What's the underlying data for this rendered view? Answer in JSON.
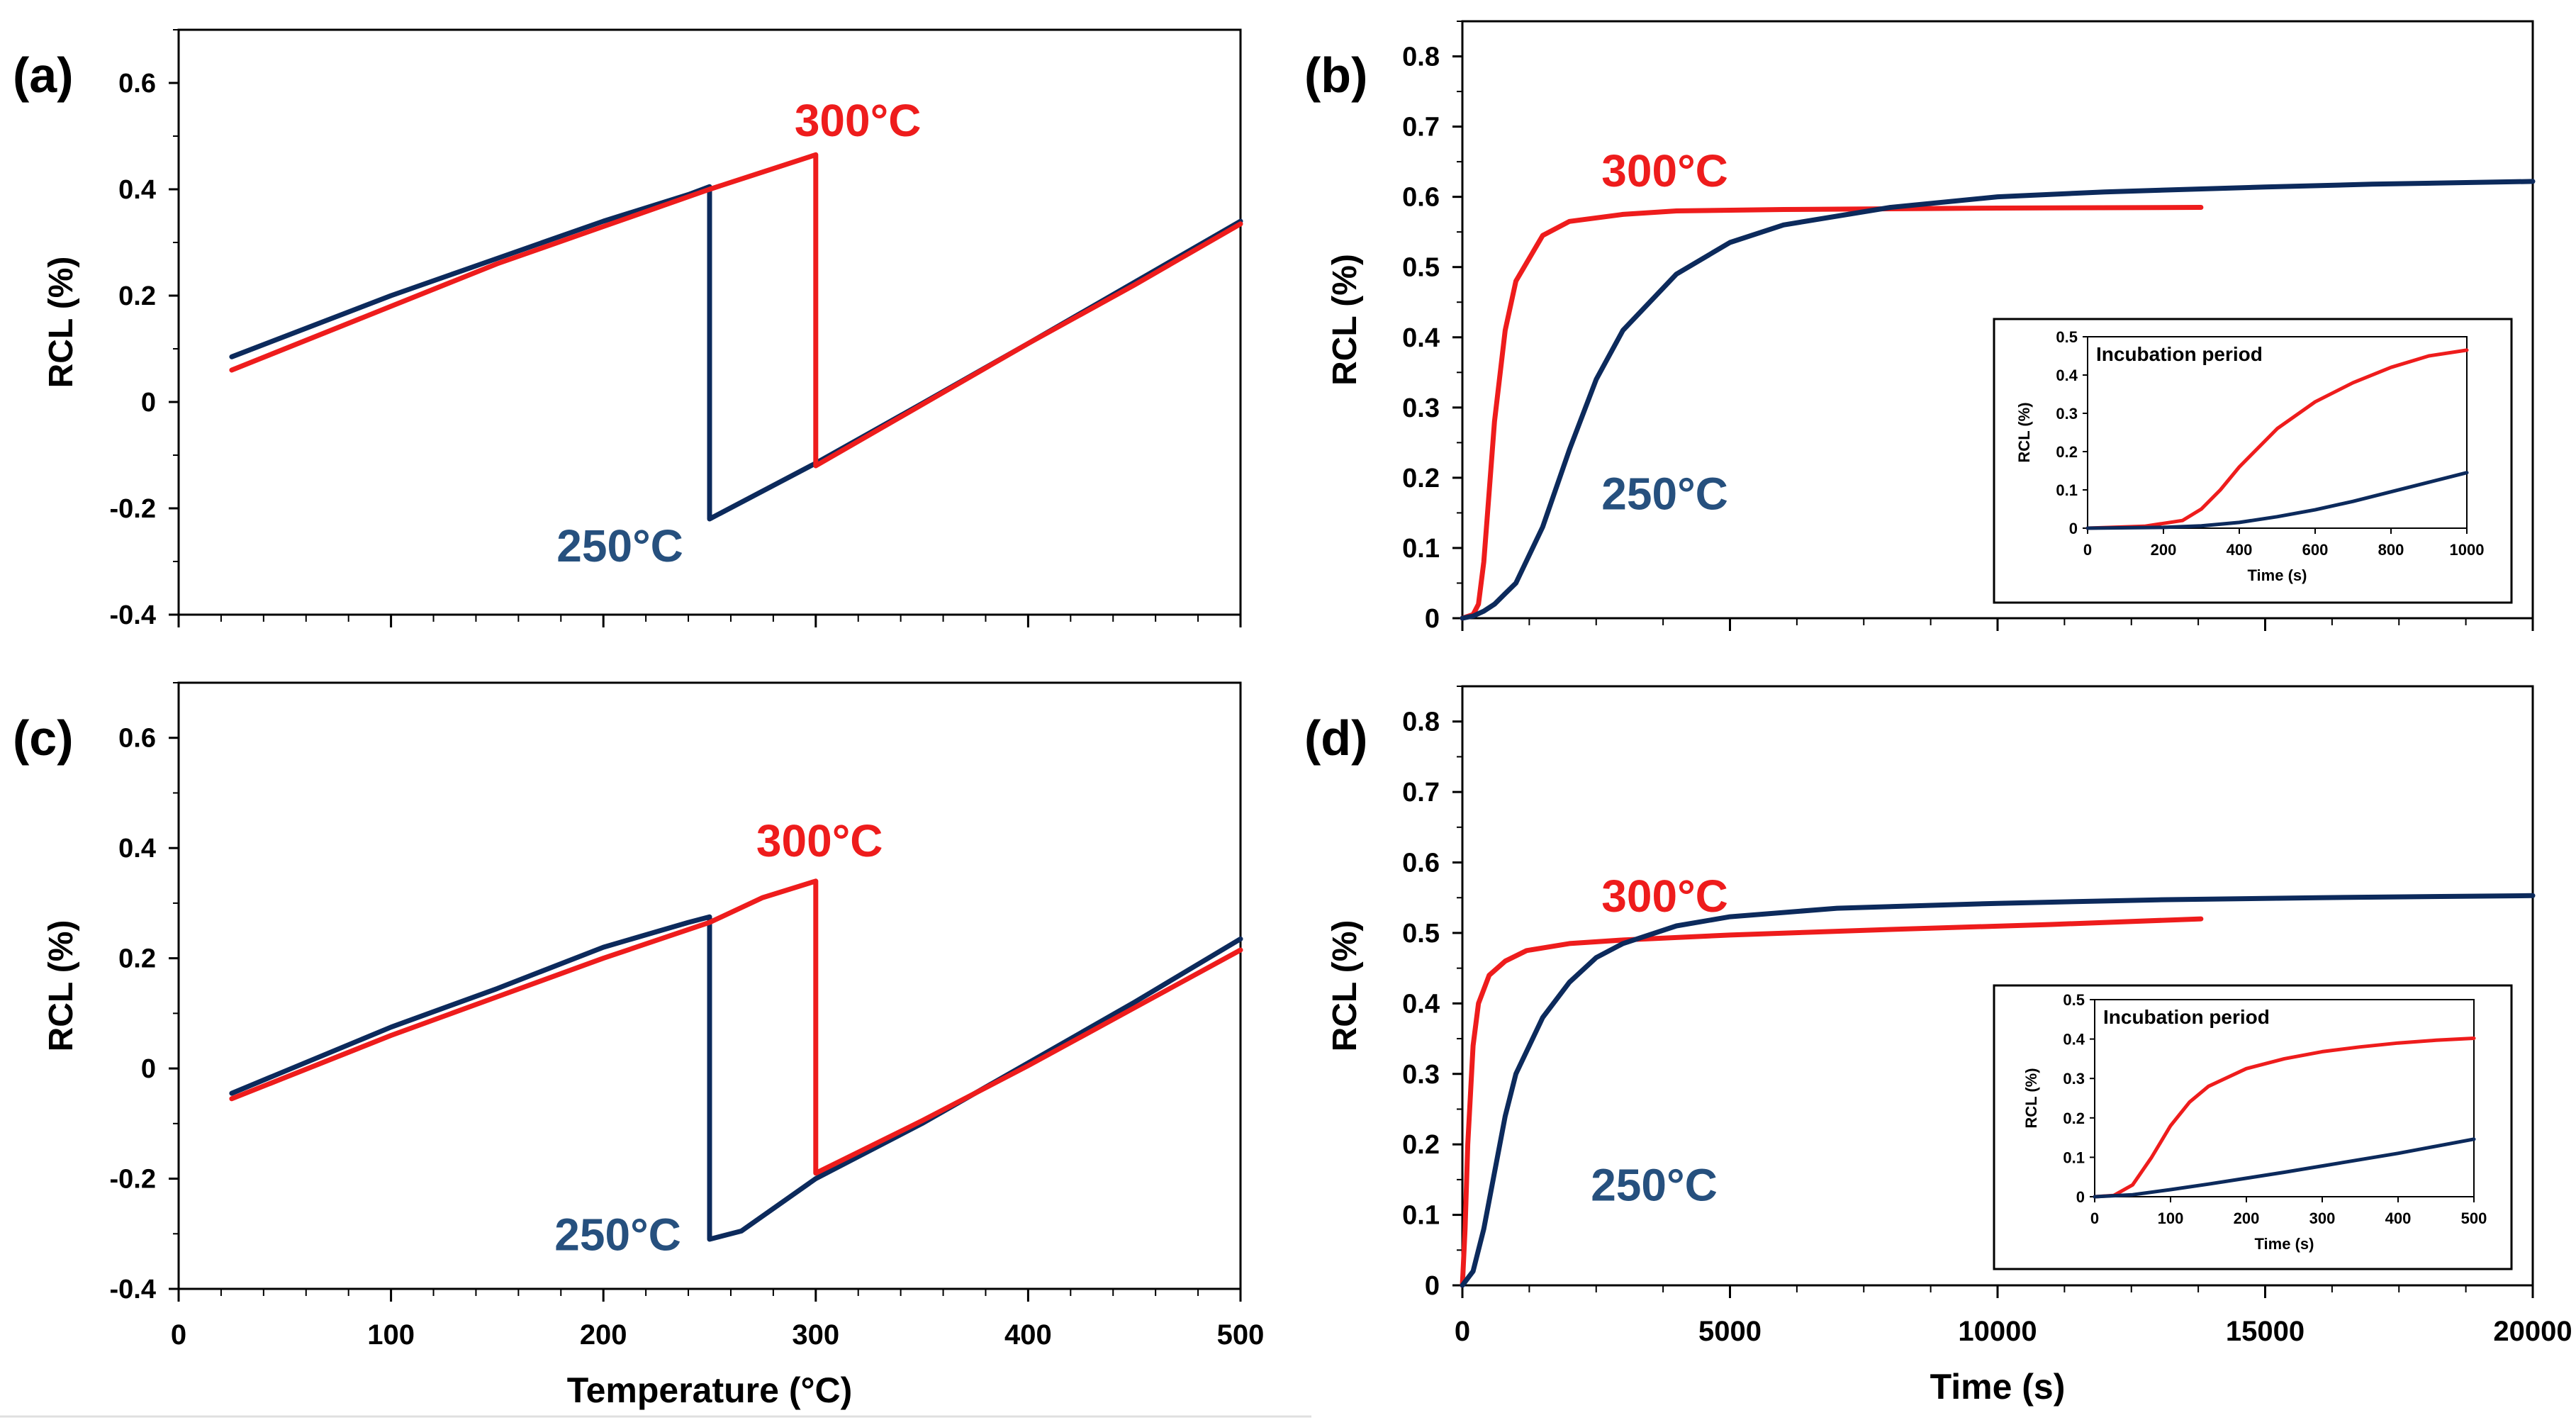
{
  "colors": {
    "red": "#ee1c1c",
    "blue": "#0c2a5c",
    "label_blue": "#26507e",
    "axis": "#000000"
  },
  "footer_label": "Temperature (°C)",
  "chart_data": [
    {
      "id": "a",
      "panel_label": "(a)",
      "type": "line",
      "ylabel": "RCL (%)",
      "xlim": [
        0,
        500
      ],
      "ylim": [
        -0.4,
        0.7
      ],
      "yticks": [
        "0.6",
        "0.4",
        "0.2",
        "0",
        "-0.2",
        "-0.4"
      ],
      "xticks": [],
      "show_xtick_labels": false,
      "series": [
        {
          "name": "250°C",
          "color": "blue",
          "x": [
            25,
            100,
            150,
            200,
            240,
            250,
            250,
            300,
            350,
            400,
            450,
            500
          ],
          "y": [
            0.085,
            0.2,
            0.27,
            0.34,
            0.39,
            0.405,
            -0.22,
            -0.115,
            -0.003,
            0.11,
            0.225,
            0.34
          ]
        },
        {
          "name": "300°C",
          "color": "red",
          "x": [
            25,
            100,
            150,
            200,
            250,
            300,
            300,
            350,
            400,
            450,
            500
          ],
          "y": [
            0.06,
            0.18,
            0.26,
            0.33,
            0.4,
            0.465,
            -0.12,
            -0.005,
            0.11,
            0.22,
            0.335
          ]
        }
      ],
      "annotations": [
        {
          "text": "300°C",
          "color": "red",
          "x": 290,
          "y": 0.5
        },
        {
          "text": "250°C",
          "color": "label_blue",
          "x": 178,
          "y": -0.3
        }
      ]
    },
    {
      "id": "b",
      "panel_label": "(b)",
      "type": "line",
      "ylabel": "RCL (%)",
      "xlim": [
        0,
        20000
      ],
      "ylim": [
        0,
        0.85
      ],
      "yticks": [
        "0.8",
        "0.7",
        "0.6",
        "0.5",
        "0.4",
        "0.3",
        "0.2",
        "0.1",
        "0"
      ],
      "xticks": [],
      "show_xtick_labels": false,
      "series": [
        {
          "name": "300°C",
          "color": "red",
          "x": [
            0,
            200,
            300,
            400,
            500,
            600,
            800,
            1000,
            1500,
            2000,
            3000,
            4000,
            6000,
            8000,
            10000,
            13800
          ],
          "y": [
            0,
            0.005,
            0.02,
            0.08,
            0.18,
            0.28,
            0.41,
            0.48,
            0.545,
            0.565,
            0.575,
            0.58,
            0.582,
            0.583,
            0.584,
            0.585
          ]
        },
        {
          "name": "250°C",
          "color": "blue",
          "x": [
            0,
            200,
            400,
            600,
            800,
            1000,
            1500,
            2000,
            2500,
            3000,
            4000,
            5000,
            6000,
            8000,
            10000,
            12000,
            15000,
            17000,
            20000
          ],
          "y": [
            0,
            0.003,
            0.01,
            0.02,
            0.035,
            0.05,
            0.13,
            0.24,
            0.34,
            0.41,
            0.49,
            0.535,
            0.56,
            0.585,
            0.6,
            0.607,
            0.614,
            0.618,
            0.622
          ]
        }
      ],
      "annotations": [
        {
          "text": "300°C",
          "color": "red",
          "x": 2600,
          "y": 0.615
        },
        {
          "text": "250°C",
          "color": "label_blue",
          "x": 2600,
          "y": 0.155
        }
      ],
      "inset": {
        "title": "Incubation period",
        "xlabel": "Time (s)",
        "ylabel": "RCL (%)",
        "xlim": [
          0,
          1000
        ],
        "ylim": [
          0,
          0.5
        ],
        "xticks": [
          "0",
          "200",
          "400",
          "600",
          "800",
          "1000"
        ],
        "yticks": [
          "0.5",
          "0.4",
          "0.3",
          "0.2",
          "0.1",
          "0"
        ],
        "series": [
          {
            "name": "300°C",
            "color": "red",
            "x": [
              0,
              150,
              250,
              300,
              350,
              400,
              500,
              600,
              700,
              800,
              900,
              1000
            ],
            "y": [
              0,
              0.005,
              0.02,
              0.05,
              0.1,
              0.16,
              0.26,
              0.33,
              0.38,
              0.42,
              0.45,
              0.465
            ]
          },
          {
            "name": "250°C",
            "color": "blue",
            "x": [
              0,
              200,
              300,
              400,
              500,
              600,
              700,
              800,
              900,
              1000
            ],
            "y": [
              0,
              0.002,
              0.006,
              0.015,
              0.03,
              0.048,
              0.07,
              0.095,
              0.12,
              0.145
            ]
          }
        ]
      }
    },
    {
      "id": "c",
      "panel_label": "(c)",
      "type": "line",
      "ylabel": "RCL (%)",
      "xlabel": "Temperature (°C)",
      "xlim": [
        0,
        500
      ],
      "ylim": [
        -0.4,
        0.7
      ],
      "yticks": [
        "0.6",
        "0.4",
        "0.2",
        "0",
        "-0.2",
        "-0.4"
      ],
      "xticks": [
        "0",
        "100",
        "200",
        "300",
        "400",
        "500"
      ],
      "show_xtick_labels": true,
      "series": [
        {
          "name": "250°C",
          "color": "blue",
          "x": [
            25,
            100,
            150,
            200,
            240,
            250,
            250,
            265,
            300,
            350,
            400,
            450,
            500
          ],
          "y": [
            -0.045,
            0.075,
            0.145,
            0.22,
            0.265,
            0.275,
            -0.31,
            -0.295,
            -0.2,
            -0.1,
            0.01,
            0.12,
            0.235
          ]
        },
        {
          "name": "300°C",
          "color": "red",
          "x": [
            25,
            100,
            150,
            200,
            250,
            275,
            300,
            300,
            350,
            400,
            450,
            500
          ],
          "y": [
            -0.055,
            0.06,
            0.13,
            0.2,
            0.265,
            0.31,
            0.34,
            -0.19,
            -0.095,
            0.005,
            0.11,
            0.215
          ]
        }
      ],
      "annotations": [
        {
          "text": "300°C",
          "color": "red",
          "x": 272,
          "y": 0.385
        },
        {
          "text": "250°C",
          "color": "label_blue",
          "x": 177,
          "y": -0.33
        }
      ]
    },
    {
      "id": "d",
      "panel_label": "(d)",
      "type": "line",
      "ylabel": "RCL (%)",
      "xlabel": "Time (s)",
      "xlim": [
        0,
        20000
      ],
      "ylim": [
        0,
        0.85
      ],
      "yticks": [
        "0.8",
        "0.7",
        "0.6",
        "0.5",
        "0.4",
        "0.3",
        "0.2",
        "0.1",
        "0"
      ],
      "xticks": [
        "0",
        "5000",
        "10000",
        "15000",
        "20000"
      ],
      "show_xtick_labels": true,
      "series": [
        {
          "name": "300°C",
          "color": "red",
          "x": [
            0,
            50,
            100,
            200,
            300,
            500,
            800,
            1200,
            2000,
            3000,
            5000,
            8000,
            11000,
            13800
          ],
          "y": [
            0,
            0.08,
            0.2,
            0.34,
            0.4,
            0.44,
            0.46,
            0.475,
            0.485,
            0.49,
            0.497,
            0.505,
            0.512,
            0.52
          ]
        },
        {
          "name": "250°C",
          "color": "blue",
          "x": [
            0,
            200,
            400,
            600,
            800,
            1000,
            1500,
            2000,
            2500,
            3000,
            4000,
            5000,
            7000,
            10000,
            13000,
            16000,
            20000
          ],
          "y": [
            0,
            0.02,
            0.08,
            0.16,
            0.24,
            0.3,
            0.38,
            0.43,
            0.465,
            0.485,
            0.51,
            0.523,
            0.535,
            0.542,
            0.547,
            0.55,
            0.553
          ]
        }
      ],
      "annotations": [
        {
          "text": "300°C",
          "color": "red",
          "x": 2600,
          "y": 0.53
        },
        {
          "text": "250°C",
          "color": "label_blue",
          "x": 2400,
          "y": 0.12
        }
      ],
      "inset": {
        "title": "Incubation period",
        "xlabel": "Time (s)",
        "ylabel": "RCL (%)",
        "xlim": [
          0,
          500
        ],
        "ylim": [
          0,
          0.5
        ],
        "xticks": [
          "0",
          "100",
          "200",
          "300",
          "400",
          "500"
        ],
        "yticks": [
          "0.5",
          "0.4",
          "0.3",
          "0.2",
          "0.1",
          "0"
        ],
        "series": [
          {
            "name": "300°C",
            "color": "red",
            "x": [
              0,
              25,
              50,
              75,
              100,
              125,
              150,
              200,
              250,
              300,
              350,
              400,
              450,
              500
            ],
            "y": [
              0,
              0.003,
              0.03,
              0.1,
              0.18,
              0.24,
              0.28,
              0.325,
              0.35,
              0.368,
              0.38,
              0.39,
              0.397,
              0.402
            ]
          },
          {
            "name": "250°C",
            "color": "blue",
            "x": [
              0,
              50,
              100,
              150,
              200,
              250,
              300,
              350,
              400,
              450,
              500
            ],
            "y": [
              0,
              0.005,
              0.018,
              0.032,
              0.047,
              0.062,
              0.078,
              0.094,
              0.11,
              0.128,
              0.146
            ]
          }
        ]
      }
    }
  ]
}
